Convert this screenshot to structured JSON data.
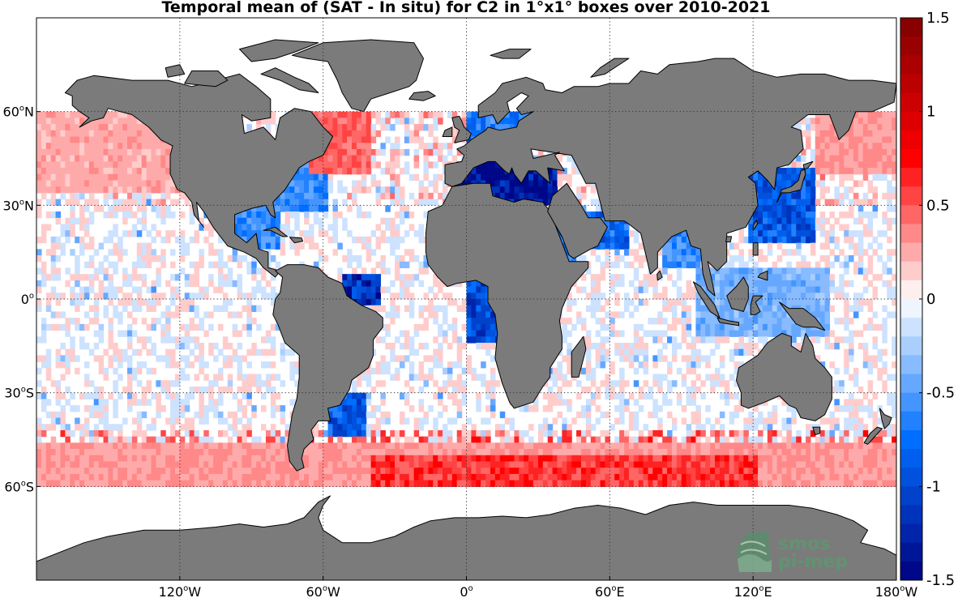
{
  "figure": {
    "title": "Temporal mean of (SAT - In situ) for C2 in 1°x1° boxes over 2010-2021"
  },
  "map": {
    "projection": "equirectangular",
    "lon_range": [
      -180,
      180
    ],
    "lat_range": [
      -90,
      90
    ],
    "land_color": "#7b7b7b",
    "ocean_color": "#ffffff",
    "data_coverage_lat": [
      -60,
      60
    ],
    "lon_ticks": [
      {
        "lon": -120,
        "label": "120",
        "unit": "W"
      },
      {
        "lon": -60,
        "label": "60",
        "unit": "W"
      },
      {
        "lon": 0,
        "label": "0",
        "unit": ""
      },
      {
        "lon": 60,
        "label": "60",
        "unit": "E"
      },
      {
        "lon": 120,
        "label": "120",
        "unit": "E"
      },
      {
        "lon": 180,
        "label": "180",
        "unit": "W"
      }
    ],
    "lat_ticks": [
      {
        "lat": 60,
        "label": "60",
        "unit": "N"
      },
      {
        "lat": 30,
        "label": "30",
        "unit": "N"
      },
      {
        "lat": 0,
        "label": "0",
        "unit": ""
      },
      {
        "lat": -30,
        "label": "30",
        "unit": "S"
      },
      {
        "lat": -60,
        "label": "60",
        "unit": "S"
      }
    ],
    "regions": [
      {
        "name": "Mediterranean Sea",
        "lon": [
          -5,
          36
        ],
        "lat": [
          31,
          44
        ],
        "mean": -1.45
      },
      {
        "name": "Red Sea",
        "lon": [
          33,
          44
        ],
        "lat": [
          13,
          28
        ],
        "mean": -0.7
      },
      {
        "name": "Persian Gulf / Arabian Sea coast",
        "lon": [
          48,
          66
        ],
        "lat": [
          18,
          28
        ],
        "mean": -0.8
      },
      {
        "name": "Amazon plume",
        "lon": [
          -52,
          -38
        ],
        "lat": [
          0,
          8
        ],
        "mean": -1.2
      },
      {
        "name": "Rio de la Plata",
        "lon": [
          -58,
          -44
        ],
        "lat": [
          -42,
          -30
        ],
        "mean": -0.9
      },
      {
        "name": "Congo / Gulf of Guinea",
        "lon": [
          0,
          14
        ],
        "lat": [
          -12,
          6
        ],
        "mean": -1.0
      },
      {
        "name": "Gulf of Mexico coast",
        "lon": [
          -98,
          -80
        ],
        "lat": [
          18,
          30
        ],
        "mean": -0.6
      },
      {
        "name": "US East coast",
        "lon": [
          -82,
          -60
        ],
        "lat": [
          30,
          45
        ],
        "mean": -0.6
      },
      {
        "name": "Labrador / Newfoundland",
        "lon": [
          -66,
          -42
        ],
        "lat": [
          42,
          60
        ],
        "mean": 0.45
      },
      {
        "name": "Baltic entrance / North Sea",
        "lon": [
          0,
          30
        ],
        "lat": [
          52,
          60
        ],
        "mean": -0.7
      },
      {
        "name": "Bay of Bengal",
        "lon": [
          82,
          96
        ],
        "lat": [
          12,
          22
        ],
        "mean": -0.6
      },
      {
        "name": "China Seas / Kuroshio",
        "lon": [
          118,
          145
        ],
        "lat": [
          20,
          42
        ],
        "mean": -0.9
      },
      {
        "name": "Maritime Continent",
        "lon": [
          95,
          150
        ],
        "lat": [
          -10,
          10
        ],
        "mean": -0.4
      },
      {
        "name": "North Pacific",
        "lon": [
          -180,
          -120
        ],
        "lat": [
          35,
          60
        ],
        "mean": 0.25
      },
      {
        "name": "NW Pacific",
        "lon": [
          145,
          180
        ],
        "lat": [
          42,
          60
        ],
        "mean": 0.3
      },
      {
        "name": "Southern Ocean",
        "lon": [
          -180,
          180
        ],
        "lat": [
          -60,
          -45
        ],
        "mean": 0.3
      },
      {
        "name": "Southern Ocean (Atlantic-Indian sector)",
        "lon": [
          -40,
          120
        ],
        "lat": [
          -60,
          -50
        ],
        "mean": 0.6
      }
    ]
  },
  "colorbar": {
    "min": -1.5,
    "max": 1.5,
    "n_levels": 30,
    "colormap": "blue-white-red (diverging)",
    "negative_color_dark": "#00007f",
    "positive_color_dark": "#7f0000",
    "ticks": [
      {
        "value": 1.5,
        "label": "1.5"
      },
      {
        "value": 1,
        "label": "1"
      },
      {
        "value": 0.5,
        "label": "0.5"
      },
      {
        "value": 0,
        "label": "0"
      },
      {
        "value": -0.5,
        "label": "-0.5"
      },
      {
        "value": -1,
        "label": "-1"
      },
      {
        "value": -1.5,
        "label": "-1.5"
      }
    ]
  },
  "watermark": {
    "line1": "smos",
    "line2": "pi-mep",
    "color": "#5a9a6e"
  }
}
